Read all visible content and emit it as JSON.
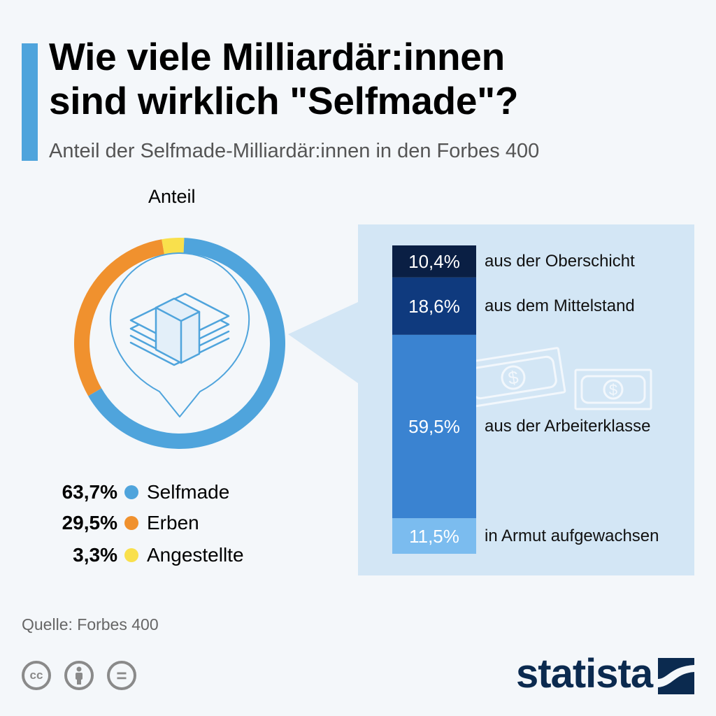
{
  "title_line1": "Wie viele Milliardär:innen",
  "title_line2": "sind wirklich \"Selfmade\"?",
  "subtitle": "Anteil der Selfmade-Milliardär:innen in den Forbes 400",
  "colors": {
    "selfmade": "#4fa4dc",
    "erben": "#f0912e",
    "angestellte": "#f9e04c",
    "oberschicht": "#0a1f44",
    "mittelstand": "#0f3a7e",
    "arbeiterklasse": "#3a83d1",
    "armut": "#7bbcef",
    "panel": "#d3e6f5"
  },
  "chart_data": [
    {
      "type": "pie",
      "title": "Anteil",
      "slices": [
        {
          "name": "Selfmade",
          "value": 63.7,
          "label": "63,7%"
        },
        {
          "name": "Erben",
          "value": 29.5,
          "label": "29,5%"
        },
        {
          "name": "Angestellte",
          "value": 3.3,
          "label": "3,3%"
        }
      ]
    },
    {
      "type": "bar",
      "stacked": true,
      "segments": [
        {
          "name": "aus der Oberschicht",
          "value": 10.4,
          "label": "10,4%"
        },
        {
          "name": "aus dem Mittelstand",
          "value": 18.6,
          "label": "18,6%"
        },
        {
          "name": "aus der Arbeiterklasse",
          "value": 59.5,
          "label": "59,5%"
        },
        {
          "name": "in Armut aufgewachsen",
          "value": 11.5,
          "label": "11,5%"
        }
      ]
    }
  ],
  "icon_center": "money-stack-icon",
  "icon_panel": "dollar-bills-icon",
  "source": "Quelle: Forbes 400",
  "license_icons": [
    "cc-icon",
    "by-icon",
    "nd-icon"
  ],
  "license_cc_text": "cc",
  "license_nd_text": "=",
  "brand": "statista"
}
